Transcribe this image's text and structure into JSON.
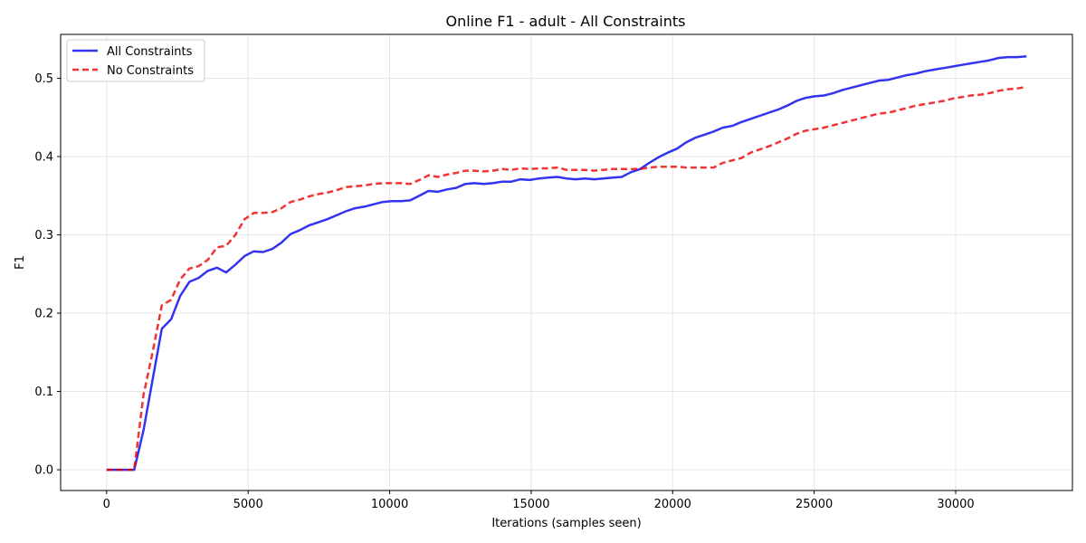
{
  "chart_data": {
    "type": "line",
    "title": "Online F1 - adult - All Constraints",
    "xlabel": "Iterations (samples seen)",
    "ylabel": "F1",
    "xlim": [
      -1625,
      34125
    ],
    "ylim": [
      -0.0265,
      0.556
    ],
    "xticks": [
      0,
      5000,
      10000,
      15000,
      20000,
      25000,
      30000
    ],
    "xtick_labels": [
      "0",
      "5000",
      "10000",
      "15000",
      "20000",
      "25000",
      "30000"
    ],
    "yticks": [
      0.0,
      0.1,
      0.2,
      0.3,
      0.4,
      0.5
    ],
    "ytick_labels": [
      "0.0",
      "0.1",
      "0.2",
      "0.3",
      "0.4",
      "0.5"
    ],
    "grid": true,
    "legend_position": "upper-left",
    "series": [
      {
        "name": "All Constraints",
        "color": "#0000ee",
        "style": "solid",
        "points": [
          [
            0,
            0.0
          ],
          [
            325,
            0.0
          ],
          [
            650,
            0.0
          ],
          [
            975,
            0.0
          ],
          [
            1300,
            0.05
          ],
          [
            1625,
            0.115
          ],
          [
            1950,
            0.18
          ],
          [
            2275,
            0.192
          ],
          [
            2600,
            0.222
          ],
          [
            2925,
            0.24
          ],
          [
            3250,
            0.245
          ],
          [
            3575,
            0.254
          ],
          [
            3900,
            0.258
          ],
          [
            4225,
            0.252
          ],
          [
            4550,
            0.262
          ],
          [
            4875,
            0.273
          ],
          [
            5200,
            0.279
          ],
          [
            5525,
            0.278
          ],
          [
            5850,
            0.282
          ],
          [
            6175,
            0.29
          ],
          [
            6500,
            0.301
          ],
          [
            6825,
            0.306
          ],
          [
            7150,
            0.312
          ],
          [
            7475,
            0.316
          ],
          [
            7800,
            0.32
          ],
          [
            8125,
            0.325
          ],
          [
            8450,
            0.33
          ],
          [
            8775,
            0.334
          ],
          [
            9100,
            0.336
          ],
          [
            9425,
            0.339
          ],
          [
            9750,
            0.342
          ],
          [
            10075,
            0.343
          ],
          [
            10400,
            0.343
          ],
          [
            10725,
            0.344
          ],
          [
            11050,
            0.35
          ],
          [
            11375,
            0.356
          ],
          [
            11700,
            0.355
          ],
          [
            12025,
            0.358
          ],
          [
            12350,
            0.36
          ],
          [
            12675,
            0.365
          ],
          [
            13000,
            0.366
          ],
          [
            13325,
            0.365
          ],
          [
            13650,
            0.366
          ],
          [
            13975,
            0.368
          ],
          [
            14300,
            0.368
          ],
          [
            14625,
            0.371
          ],
          [
            14950,
            0.37
          ],
          [
            15275,
            0.372
          ],
          [
            15600,
            0.373
          ],
          [
            15925,
            0.374
          ],
          [
            16250,
            0.372
          ],
          [
            16575,
            0.371
          ],
          [
            16900,
            0.372
          ],
          [
            17225,
            0.371
          ],
          [
            17550,
            0.372
          ],
          [
            17875,
            0.373
          ],
          [
            18200,
            0.374
          ],
          [
            18525,
            0.38
          ],
          [
            18850,
            0.384
          ],
          [
            19175,
            0.392
          ],
          [
            19500,
            0.399
          ],
          [
            19825,
            0.405
          ],
          [
            20150,
            0.41
          ],
          [
            20475,
            0.418
          ],
          [
            20800,
            0.424
          ],
          [
            21125,
            0.428
          ],
          [
            21450,
            0.432
          ],
          [
            21775,
            0.437
          ],
          [
            22100,
            0.439
          ],
          [
            22425,
            0.444
          ],
          [
            22750,
            0.448
          ],
          [
            23075,
            0.452
          ],
          [
            23400,
            0.456
          ],
          [
            23725,
            0.46
          ],
          [
            24050,
            0.465
          ],
          [
            24375,
            0.471
          ],
          [
            24700,
            0.475
          ],
          [
            25025,
            0.477
          ],
          [
            25350,
            0.478
          ],
          [
            25675,
            0.481
          ],
          [
            26000,
            0.485
          ],
          [
            26325,
            0.488
          ],
          [
            26650,
            0.491
          ],
          [
            26975,
            0.494
          ],
          [
            27300,
            0.497
          ],
          [
            27625,
            0.498
          ],
          [
            27950,
            0.501
          ],
          [
            28275,
            0.504
          ],
          [
            28600,
            0.506
          ],
          [
            28925,
            0.509
          ],
          [
            29250,
            0.511
          ],
          [
            29575,
            0.513
          ],
          [
            29900,
            0.515
          ],
          [
            30225,
            0.517
          ],
          [
            30550,
            0.519
          ],
          [
            30875,
            0.521
          ],
          [
            31200,
            0.523
          ],
          [
            31525,
            0.526
          ],
          [
            31850,
            0.527
          ],
          [
            32175,
            0.527
          ],
          [
            32500,
            0.528
          ]
        ]
      },
      {
        "name": "No Constraints",
        "color": "#ee0000",
        "style": "dashed",
        "points": [
          [
            0,
            0.0
          ],
          [
            325,
            0.0
          ],
          [
            650,
            0.0
          ],
          [
            975,
            0.0
          ],
          [
            1300,
            0.095
          ],
          [
            1625,
            0.15
          ],
          [
            1950,
            0.21
          ],
          [
            2275,
            0.217
          ],
          [
            2600,
            0.243
          ],
          [
            2925,
            0.257
          ],
          [
            3250,
            0.26
          ],
          [
            3575,
            0.268
          ],
          [
            3900,
            0.284
          ],
          [
            4225,
            0.286
          ],
          [
            4550,
            0.3
          ],
          [
            4875,
            0.32
          ],
          [
            5200,
            0.328
          ],
          [
            5525,
            0.328
          ],
          [
            5850,
            0.329
          ],
          [
            6175,
            0.334
          ],
          [
            6500,
            0.342
          ],
          [
            6825,
            0.345
          ],
          [
            7150,
            0.349
          ],
          [
            7475,
            0.352
          ],
          [
            7800,
            0.354
          ],
          [
            8125,
            0.357
          ],
          [
            8450,
            0.361
          ],
          [
            8775,
            0.362
          ],
          [
            9100,
            0.363
          ],
          [
            9425,
            0.365
          ],
          [
            9750,
            0.366
          ],
          [
            10075,
            0.366
          ],
          [
            10400,
            0.366
          ],
          [
            10725,
            0.365
          ],
          [
            11050,
            0.37
          ],
          [
            11375,
            0.376
          ],
          [
            11700,
            0.374
          ],
          [
            12025,
            0.377
          ],
          [
            12350,
            0.379
          ],
          [
            12675,
            0.382
          ],
          [
            13000,
            0.382
          ],
          [
            13325,
            0.381
          ],
          [
            13650,
            0.382
          ],
          [
            13975,
            0.384
          ],
          [
            14300,
            0.383
          ],
          [
            14625,
            0.385
          ],
          [
            14950,
            0.384
          ],
          [
            15275,
            0.385
          ],
          [
            15600,
            0.385
          ],
          [
            15925,
            0.386
          ],
          [
            16250,
            0.383
          ],
          [
            16575,
            0.383
          ],
          [
            16900,
            0.383
          ],
          [
            17225,
            0.382
          ],
          [
            17550,
            0.383
          ],
          [
            17875,
            0.384
          ],
          [
            18200,
            0.384
          ],
          [
            18525,
            0.384
          ],
          [
            18850,
            0.384
          ],
          [
            19175,
            0.386
          ],
          [
            19500,
            0.387
          ],
          [
            19825,
            0.387
          ],
          [
            20150,
            0.387
          ],
          [
            20475,
            0.386
          ],
          [
            20800,
            0.386
          ],
          [
            21125,
            0.386
          ],
          [
            21450,
            0.386
          ],
          [
            21775,
            0.392
          ],
          [
            22100,
            0.395
          ],
          [
            22425,
            0.398
          ],
          [
            22750,
            0.405
          ],
          [
            23075,
            0.409
          ],
          [
            23400,
            0.413
          ],
          [
            23725,
            0.418
          ],
          [
            24050,
            0.423
          ],
          [
            24375,
            0.429
          ],
          [
            24700,
            0.433
          ],
          [
            25025,
            0.435
          ],
          [
            25350,
            0.437
          ],
          [
            25675,
            0.44
          ],
          [
            26000,
            0.443
          ],
          [
            26325,
            0.446
          ],
          [
            26650,
            0.449
          ],
          [
            26975,
            0.452
          ],
          [
            27300,
            0.455
          ],
          [
            27625,
            0.456
          ],
          [
            27950,
            0.459
          ],
          [
            28275,
            0.462
          ],
          [
            28600,
            0.465
          ],
          [
            28925,
            0.467
          ],
          [
            29250,
            0.469
          ],
          [
            29575,
            0.471
          ],
          [
            29900,
            0.474
          ],
          [
            30225,
            0.476
          ],
          [
            30550,
            0.478
          ],
          [
            30875,
            0.479
          ],
          [
            31200,
            0.481
          ],
          [
            31525,
            0.484
          ],
          [
            31850,
            0.486
          ],
          [
            32175,
            0.487
          ],
          [
            32500,
            0.489
          ]
        ]
      }
    ]
  }
}
